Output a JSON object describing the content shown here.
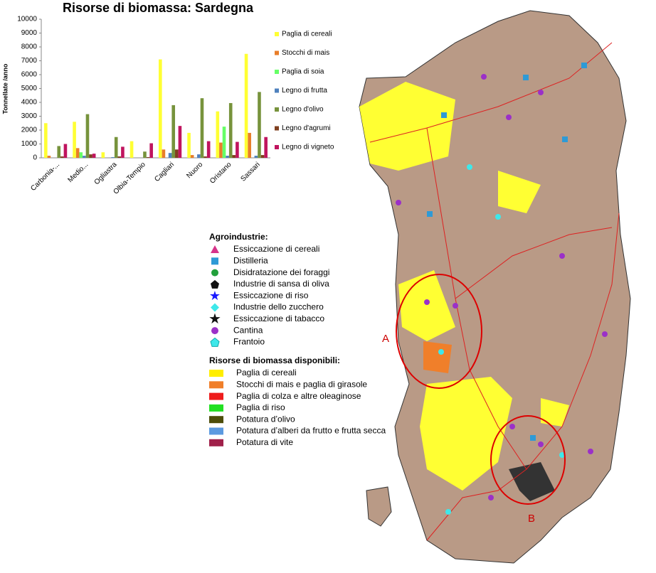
{
  "chart_data": {
    "type": "bar",
    "title": "Risorse di biomassa: Sardegna",
    "y_label": "Tonnellate /anno",
    "categories": [
      "Carbonia-...",
      "Medio...",
      "Ogliastra",
      "Olbia-Tempio",
      "Cagliari",
      "Nuoro",
      "Oristano",
      "Sassari"
    ],
    "series": [
      {
        "name": "Paglia di cereali",
        "color": "#ffff33",
        "values": [
          2500,
          2600,
          400,
          1200,
          7100,
          1800,
          3350,
          7500
        ]
      },
      {
        "name": "Stocchi di mais",
        "color": "#e87e2a",
        "values": [
          150,
          700,
          0,
          0,
          600,
          200,
          1100,
          1800
        ]
      },
      {
        "name": "Paglia di soia",
        "color": "#66ff66",
        "values": [
          0,
          400,
          0,
          0,
          0,
          0,
          2250,
          0
        ]
      },
      {
        "name": "Legno di frutta",
        "color": "#4f81bd",
        "values": [
          0,
          150,
          50,
          0,
          350,
          250,
          150,
          150
        ]
      },
      {
        "name": "Legno d'olivo",
        "color": "#77933c",
        "values": [
          850,
          3150,
          1500,
          450,
          3800,
          4300,
          3950,
          4750
        ]
      },
      {
        "name": "Legno d'agrumi",
        "color": "#7f3f1f",
        "values": [
          100,
          250,
          100,
          50,
          600,
          100,
          200,
          200
        ]
      },
      {
        "name": "Legno di vigneto",
        "color": "#c0145e",
        "values": [
          1000,
          300,
          800,
          1050,
          2300,
          1200,
          1150,
          1500
        ]
      }
    ],
    "ylim": [
      0,
      10000
    ],
    "yticks": [
      0,
      1000,
      2000,
      3000,
      4000,
      5000,
      6000,
      7000,
      8000,
      9000,
      10000
    ]
  },
  "map_legend": {
    "agroindustrie": {
      "title": "Agroindustrie:",
      "items": [
        "Essiccazione di cereali",
        "Distilleria",
        "Disidratazione dei foraggi",
        "Industrie di sansa di oliva",
        "Essiccazione di riso",
        "Industrie dello zucchero",
        "Essiccazione di tabacco",
        "Cantina",
        "Frantoio"
      ]
    },
    "risorse": {
      "title": "Risorse di biomassa disponibili:",
      "items": [
        "Paglia di cereali",
        "Stocchi di mais e paglia di girasole",
        "Paglia di colza e altre oleaginose",
        "Paglia di riso",
        "Potatura d’olivo",
        "Potatura d’alberi da frutto e frutta secca",
        "Potatura di vite"
      ]
    }
  },
  "map_labels": [
    "A",
    "B"
  ]
}
